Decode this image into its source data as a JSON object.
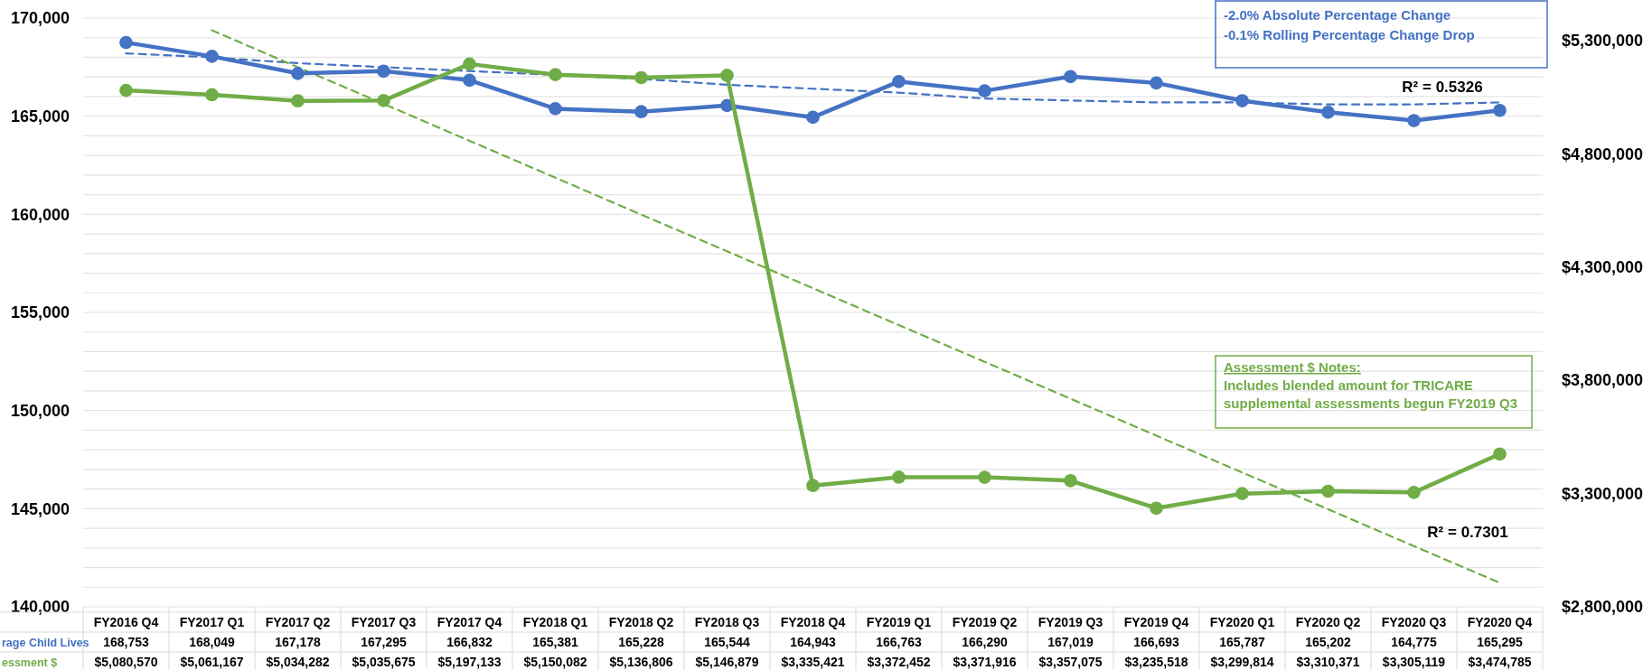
{
  "chart_data": {
    "type": "line",
    "categories": [
      "FY2016 Q4",
      "FY2017 Q1",
      "FY2017 Q2",
      "FY2017 Q3",
      "FY2017 Q4",
      "FY2018 Q1",
      "FY2018 Q2",
      "FY2018 Q3",
      "FY2018 Q4",
      "FY2019 Q1",
      "FY2019 Q2",
      "FY2019 Q3",
      "FY2019 Q4",
      "FY2020 Q1",
      "FY2020 Q2",
      "FY2020 Q3",
      "FY2020 Q4"
    ],
    "series": [
      {
        "name": "rage Child Lives",
        "color": "#4472c4",
        "marker": "circle",
        "values": [
          168753,
          168049,
          167178,
          167295,
          166832,
          165381,
          165228,
          165544,
          164943,
          166763,
          166290,
          167019,
          166693,
          165787,
          165202,
          164775,
          165295
        ],
        "value_labels": [
          "168,753",
          "168,049",
          "167,178",
          "167,295",
          "166,832",
          "165,381",
          "165,228",
          "165,544",
          "164,943",
          "166,763",
          "166,290",
          "167,019",
          "166,693",
          "165,787",
          "165,202",
          "164,775",
          "165,295"
        ]
      },
      {
        "name": "essment $",
        "color": "#70ad47",
        "marker": "circle",
        "axis": "y2",
        "values": [
          5080570,
          5061167,
          5034282,
          5035675,
          5197133,
          5150082,
          5136806,
          5146879,
          3335421,
          3372452,
          3371916,
          3357075,
          3235518,
          3299814,
          3310371,
          3305119,
          3474785
        ],
        "value_labels": [
          "$5,080,570",
          "$5,061,167",
          "$5,034,282",
          "$5,035,675",
          "$5,197,133",
          "$5,150,082",
          "$5,136,806",
          "$5,146,879",
          "$3,335,421",
          "$3,372,452",
          "$3,371,916",
          "$3,357,075",
          "$3,235,518",
          "$3,299,814",
          "$3,310,371",
          "$3,305,119",
          "$3,474,785"
        ]
      },
      {
        "type": "line",
        "color": "#4472c4",
        "line_style": "dashed",
        "marker": "none",
        "values": [
          168200,
          168000,
          167700,
          167500,
          167300,
          167100,
          166900,
          166600,
          166400,
          166200,
          165900,
          165800,
          165700,
          165700,
          165600,
          165600,
          165700
        ]
      },
      {
        "type": "line",
        "color": "#70ad47",
        "line_style": "dashed",
        "marker": "none",
        "axis": "y2",
        "values": [
          null,
          5346000,
          5183000,
          5021000,
          4858000,
          4695000,
          4532000,
          4370000,
          4207000,
          4044000,
          3882000,
          3719000,
          3556000,
          3393000,
          3231000,
          3068000,
          2906000
        ]
      }
    ],
    "ylim": [
      140000,
      170000
    ],
    "yticks": [
      {
        "value": 140000,
        "label": "140,000"
      },
      {
        "value": 141000,
        "label": null
      },
      {
        "value": 142000,
        "label": null
      },
      {
        "value": 143000,
        "label": null
      },
      {
        "value": 144000,
        "label": null
      },
      {
        "value": 145000,
        "label": "145,000"
      },
      {
        "value": 146000,
        "label": null
      },
      {
        "value": 147000,
        "label": null
      },
      {
        "value": 148000,
        "label": null
      },
      {
        "value": 149000,
        "label": null
      },
      {
        "value": 150000,
        "label": "150,000"
      },
      {
        "value": 151000,
        "label": null
      },
      {
        "value": 152000,
        "label": null
      },
      {
        "value": 153000,
        "label": null
      },
      {
        "value": 154000,
        "label": null
      },
      {
        "value": 155000,
        "label": "155,000"
      },
      {
        "value": 156000,
        "label": null
      },
      {
        "value": 157000,
        "label": null
      },
      {
        "value": 158000,
        "label": null
      },
      {
        "value": 159000,
        "label": null
      },
      {
        "value": 160000,
        "label": "160,000"
      },
      {
        "value": 161000,
        "label": null
      },
      {
        "value": 162000,
        "label": null
      },
      {
        "value": 163000,
        "label": null
      },
      {
        "value": 164000,
        "label": null
      },
      {
        "value": 165000,
        "label": "165,000"
      },
      {
        "value": 166000,
        "label": null
      },
      {
        "value": 167000,
        "label": null
      },
      {
        "value": 168000,
        "label": null
      },
      {
        "value": 169000,
        "label": null
      },
      {
        "value": 170000,
        "label": "170,000"
      }
    ],
    "y2lim": [
      2800000,
      5400000
    ],
    "y2ticks": [
      {
        "value": 2800000,
        "label": "$2,800,000"
      },
      {
        "value": 3300000,
        "label": "$3,300,000"
      },
      {
        "value": 3800000,
        "label": "$3,800,000"
      },
      {
        "value": 4300000,
        "label": "$4,300,000"
      },
      {
        "value": 4800000,
        "label": "$4,800,000"
      },
      {
        "value": 5300000,
        "label": "$5,300,000"
      }
    ],
    "grid": "y",
    "annotations": [
      "-2.0% Absolute Percentage Change",
      "-0.1% Rolling Percentage Change Drop",
      "Assessment $ Notes:",
      "Includes blended amount for TRICARE",
      "supplemental assessments begun FY2019 Q3",
      "R² = 0.5326",
      "R² = 0.7301"
    ]
  }
}
